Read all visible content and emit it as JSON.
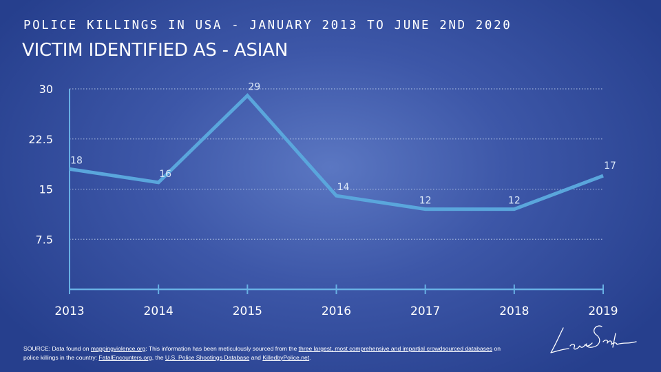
{
  "header": {
    "kicker": "POLICE KILLINGS IN USA - JANUARY 2013 TO JUNE 2ND 2020",
    "title": "VICTIM IDENTIFIED AS - ASIAN"
  },
  "chart_data": {
    "type": "line",
    "x": [
      "2013",
      "2014",
      "2015",
      "2016",
      "2017",
      "2018",
      "2019"
    ],
    "series": [
      {
        "values": [
          18,
          16,
          29,
          14,
          12,
          12,
          17
        ]
      }
    ],
    "data_labels": [
      "18",
      "16",
      "29",
      "14",
      "12",
      "12",
      "17"
    ],
    "ylim": [
      0,
      30
    ],
    "yticks": [
      7.5,
      15,
      22.5,
      30
    ],
    "ytick_labels": [
      "7.5",
      "15",
      "22.5",
      "30"
    ],
    "grid": true,
    "legend": "none",
    "colors": {
      "line": "#5aa6dc",
      "axis": "#68b0e4",
      "grid": "#cfe0f4",
      "text": "#ffffff"
    }
  },
  "footer": {
    "source_parts": [
      {
        "text": "SOURCE: Data found on ",
        "link": false
      },
      {
        "text": "mappingviolence.org",
        "link": true
      },
      {
        "text": ": This information has been meticulously sourced from the ",
        "link": false
      },
      {
        "text": "three largest, most comprehensive and impartial crowdsourced databases",
        "link": true
      },
      {
        "text": " on police killings in the country: ",
        "link": false
      },
      {
        "text": "FatalEncounters.org",
        "link": true
      },
      {
        "text": ", the ",
        "link": false
      },
      {
        "text": "U.S. Police Shootings Database",
        "link": true
      },
      {
        "text": " and ",
        "link": false
      },
      {
        "text": "KilledbyPolice.net",
        "link": true
      },
      {
        "text": ".",
        "link": false
      }
    ],
    "signature_icon": "handwritten-signature"
  }
}
